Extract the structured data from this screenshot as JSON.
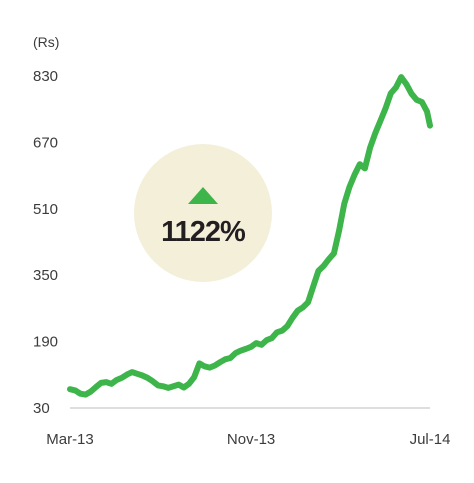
{
  "chart_data": {
    "type": "line",
    "unit_label": "(Rs)",
    "title": "",
    "xlabel": "",
    "ylabel": "",
    "y_ticks": [
      "830",
      "670",
      "510",
      "350",
      "190",
      "30"
    ],
    "y_tick_values": [
      830,
      670,
      510,
      350,
      190,
      30
    ],
    "ylim": [
      30,
      830
    ],
    "x_ticks": [
      "Mar-13",
      "Nov-13",
      "Jul-14"
    ],
    "x_tick_values": [
      "2013-03-01",
      "2013-11-01",
      "2014-07-01"
    ],
    "xlim": [
      "2013-03-01",
      "2014-07-01"
    ],
    "grid": false,
    "legend": "none",
    "line_color": "#3db54a",
    "badge": {
      "text": "1122%",
      "direction": "up",
      "arrow_color": "#3db54a",
      "circle_color": "#f4efd9"
    },
    "series": [
      {
        "x": [
          "2013-03-01",
          "2013-03-08",
          "2013-03-15",
          "2013-03-22",
          "2013-03-29",
          "2013-04-05",
          "2013-04-12",
          "2013-04-19",
          "2013-04-26",
          "2013-05-03",
          "2013-05-10",
          "2013-05-17",
          "2013-05-24",
          "2013-05-31",
          "2013-06-07",
          "2013-06-14",
          "2013-06-21",
          "2013-06-28",
          "2013-07-05",
          "2013-07-12",
          "2013-07-19",
          "2013-07-26",
          "2013-08-02",
          "2013-08-09",
          "2013-08-16",
          "2013-08-23",
          "2013-08-30",
          "2013-09-06",
          "2013-09-13",
          "2013-09-20",
          "2013-09-27",
          "2013-10-04",
          "2013-10-11",
          "2013-10-18",
          "2013-10-25",
          "2013-11-01",
          "2013-11-08",
          "2013-11-15",
          "2013-11-22",
          "2013-11-29",
          "2013-12-06",
          "2013-12-13",
          "2013-12-20",
          "2013-12-27",
          "2014-01-03",
          "2014-01-10",
          "2014-01-17",
          "2014-01-24",
          "2014-01-31",
          "2014-02-07",
          "2014-02-14",
          "2014-02-21",
          "2014-02-28",
          "2014-03-07",
          "2014-03-14",
          "2014-03-21",
          "2014-03-28",
          "2014-04-04",
          "2014-04-11",
          "2014-04-18",
          "2014-04-25",
          "2014-05-02",
          "2014-05-09",
          "2014-05-16",
          "2014-05-23",
          "2014-05-30",
          "2014-06-06",
          "2014-06-13",
          "2014-06-20",
          "2014-06-27",
          "2014-07-01"
        ],
        "y": [
          73,
          70,
          62,
          60,
          67,
          78,
          88,
          90,
          86,
          95,
          100,
          108,
          114,
          110,
          106,
          100,
          92,
          82,
          80,
          76,
          80,
          84,
          77,
          86,
          102,
          135,
          128,
          125,
          130,
          138,
          145,
          148,
          160,
          166,
          170,
          175,
          184,
          180,
          191,
          196,
          210,
          214,
          225,
          245,
          262,
          270,
          282,
          320,
          358,
          370,
          386,
          400,
          455,
          520,
          560,
          590,
          615,
          605,
          655,
          690,
          720,
          750,
          786,
          800,
          825,
          808,
          785,
          770,
          765,
          742,
          708
        ]
      }
    ]
  }
}
